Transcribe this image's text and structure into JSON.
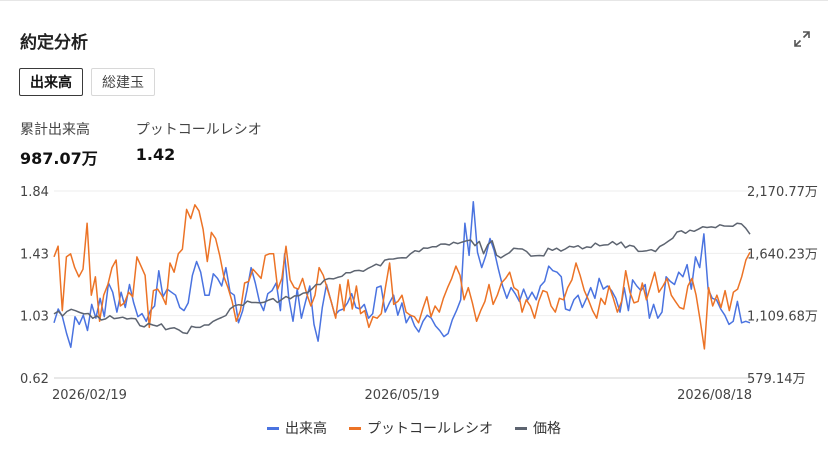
{
  "title": "約定分析",
  "tabs": [
    {
      "label": "出来高",
      "active": true
    },
    {
      "label": "総建玉",
      "active": false
    }
  ],
  "stats": [
    {
      "label": "累計出来高",
      "value": "987.07万"
    },
    {
      "label": "プットコールレシオ",
      "value": "1.42"
    }
  ],
  "icons": {
    "expand": "expand-icon"
  },
  "colors": {
    "volume": "#4a73e0",
    "ratio": "#ec7326",
    "price": "#5d6470"
  },
  "chart_data": {
    "type": "line",
    "x_tick_labels": [
      "2026/02/19",
      "2026/05/19",
      "2026/08/18"
    ],
    "y_left": {
      "ticks": [
        "1.84",
        "1.43",
        "1.03",
        "0.62"
      ],
      "range": [
        0.62,
        1.84
      ]
    },
    "y_right": {
      "ticks": [
        "2,170.77万",
        "1,640.23万",
        "1,109.68万",
        "579.14万"
      ],
      "range": [
        579.14,
        2170.77
      ]
    },
    "legend": [
      "出来高",
      "プットコールレシオ",
      "価格"
    ],
    "legend_position": "bottom",
    "grid": true,
    "series": [
      {
        "name": "出来高",
        "axis": "left",
        "color": "#4a73e0",
        "values": [
          0.98,
          1.07,
          1.02,
          0.91,
          0.82,
          1.02,
          0.97,
          1.03,
          0.93,
          1.1,
          1.01,
          1.14,
          1.02,
          1.24,
          1.18,
          1.05,
          1.18,
          1.08,
          1.23,
          1.11,
          1.02,
          1.04,
          0.99,
          1.06,
          1.09,
          1.32,
          1.15,
          1.2,
          1.18,
          1.16,
          1.08,
          1.06,
          1.11,
          1.29,
          1.38,
          1.31,
          1.16,
          1.16,
          1.3,
          1.27,
          1.22,
          1.34,
          1.18,
          1.16,
          0.98,
          1.06,
          1.19,
          1.34,
          1.24,
          1.12,
          1.06,
          1.17,
          1.19,
          1.24,
          1.06,
          1.43,
          1.14,
          0.99,
          1.2,
          1.01,
          1.12,
          1.22,
          0.97,
          0.86,
          1.08,
          1.23,
          1.13,
          1.03,
          1.06,
          1.07,
          1.11,
          1.17,
          1.08,
          1.07,
          1.1,
          1.01,
          1.04,
          1.21,
          1.22,
          1.05,
          1.11,
          1.16,
          1.03,
          1.11,
          0.98,
          1.03,
          0.96,
          0.92,
          0.99,
          1.03,
          1.01,
          0.96,
          0.93,
          0.89,
          0.91,
          1.0,
          1.06,
          1.13,
          1.63,
          1.42,
          1.77,
          1.44,
          1.34,
          1.42,
          1.53,
          1.45,
          1.33,
          1.22,
          1.14,
          1.21,
          1.17,
          1.12,
          1.2,
          1.13,
          1.18,
          1.13,
          1.22,
          1.25,
          1.35,
          1.32,
          1.31,
          1.28,
          1.07,
          1.06,
          1.13,
          1.16,
          1.08,
          1.14,
          1.21,
          1.14,
          1.27,
          1.2,
          1.22,
          1.19,
          1.14,
          1.05,
          1.21,
          1.06,
          1.26,
          1.22,
          1.19,
          1.23,
          1.01,
          1.1,
          1.01,
          1.05,
          1.28,
          1.25,
          1.23,
          1.31,
          1.28,
          1.36,
          1.2,
          1.41,
          1.34,
          1.56,
          1.2,
          1.14,
          1.13,
          1.07,
          1.03,
          0.97,
          0.99,
          1.12,
          0.98,
          0.99,
          0.98
        ]
      },
      {
        "name": "プットコールレシオ",
        "axis": "left",
        "color": "#ec7326",
        "values": [
          1.41,
          1.48,
          1.06,
          1.41,
          1.43,
          1.34,
          1.28,
          1.33,
          1.63,
          1.16,
          1.28,
          0.99,
          1.16,
          1.23,
          1.34,
          1.39,
          1.09,
          1.11,
          1.18,
          1.15,
          1.41,
          1.35,
          1.29,
          0.95,
          1.19,
          1.2,
          1.16,
          1.1,
          1.37,
          1.31,
          1.43,
          1.46,
          1.72,
          1.66,
          1.75,
          1.71,
          1.59,
          1.38,
          1.57,
          1.53,
          1.42,
          1.28,
          1.21,
          1.12,
          0.99,
          1.06,
          1.24,
          1.25,
          1.33,
          1.3,
          1.27,
          1.42,
          1.43,
          1.43,
          1.2,
          1.27,
          1.48,
          1.26,
          1.21,
          1.2,
          1.27,
          1.17,
          1.09,
          1.16,
          1.34,
          1.29,
          1.2,
          1.11,
          1.01,
          1.23,
          1.06,
          1.26,
          1.07,
          1.22,
          1.04,
          1.06,
          0.95,
          1.02,
          1.01,
          1.04,
          1.21,
          1.37,
          1.1,
          1.12,
          1.16,
          1.05,
          1.03,
          1.02,
          0.98,
          1.07,
          1.15,
          1.02,
          1.09,
          1.05,
          1.14,
          1.21,
          1.27,
          1.35,
          1.29,
          1.13,
          1.21,
          1.11,
          0.99,
          1.06,
          1.12,
          1.23,
          1.1,
          1.16,
          1.24,
          1.27,
          1.31,
          1.21,
          1.19,
          1.05,
          1.13,
          1.09,
          1.01,
          1.12,
          1.19,
          1.18,
          1.09,
          1.05,
          1.14,
          1.13,
          1.21,
          1.26,
          1.37,
          1.29,
          1.19,
          1.13,
          1.06,
          1.01,
          1.14,
          1.1,
          1.22,
          1.14,
          1.05,
          1.12,
          1.32,
          1.18,
          1.11,
          1.12,
          1.24,
          1.13,
          1.22,
          1.31,
          1.18,
          1.22,
          1.27,
          1.16,
          1.12,
          1.08,
          1.07,
          1.22,
          1.27,
          1.16,
          0.99,
          0.81,
          1.21,
          1.09,
          1.16,
          1.08,
          1.19,
          1.06,
          1.18,
          1.2,
          1.28,
          1.39,
          1.44
        ]
      },
      {
        "name": "価格",
        "axis": "right",
        "color": "#5d6470",
        "values": [
          1125,
          1148,
          1108,
          1145,
          1164,
          1152,
          1137,
          1125,
          1128,
          1087,
          1108,
          1073,
          1082,
          1109,
          1085,
          1090,
          1097,
          1081,
          1086,
          1084,
          1025,
          1014,
          1043,
          1030,
          1021,
          1040,
          990,
          1001,
          1006,
          989,
          964,
          958,
          1019,
          1010,
          1010,
          1030,
          1030,
          1061,
          1079,
          1094,
          1111,
          1167,
          1194,
          1203,
          1197,
          1234,
          1222,
          1222,
          1218,
          1225,
          1243,
          1255,
          1222,
          1247,
          1273,
          1254,
          1278,
          1280,
          1302,
          1307,
          1336,
          1375,
          1375,
          1415,
          1426,
          1423,
          1435,
          1445,
          1475,
          1475,
          1492,
          1495,
          1487,
          1510,
          1528,
          1548,
          1534,
          1583,
          1591,
          1592,
          1600,
          1602,
          1601,
          1637,
          1663,
          1655,
          1686,
          1684,
          1696,
          1697,
          1719,
          1720,
          1711,
          1734,
          1723,
          1736,
          1747,
          1754,
          1705,
          1742,
          1637,
          1715,
          1747,
          1625,
          1601,
          1625,
          1646,
          1683,
          1680,
          1677,
          1656,
          1617,
          1619,
          1622,
          1618,
          1683,
          1666,
          1684,
          1659,
          1677,
          1700,
          1693,
          1705,
          1679,
          1695,
          1690,
          1727,
          1704,
          1711,
          1714,
          1740,
          1713,
          1736,
          1688,
          1709,
          1699,
          1657,
          1658,
          1663,
          1671,
          1656,
          1699,
          1718,
          1744,
          1768,
          1822,
          1832,
          1811,
          1837,
          1828,
          1846,
          1866,
          1860,
          1865,
          1859,
          1883,
          1873,
          1872,
          1871,
          1897,
          1891,
          1854,
          1803
        ]
      }
    ]
  }
}
